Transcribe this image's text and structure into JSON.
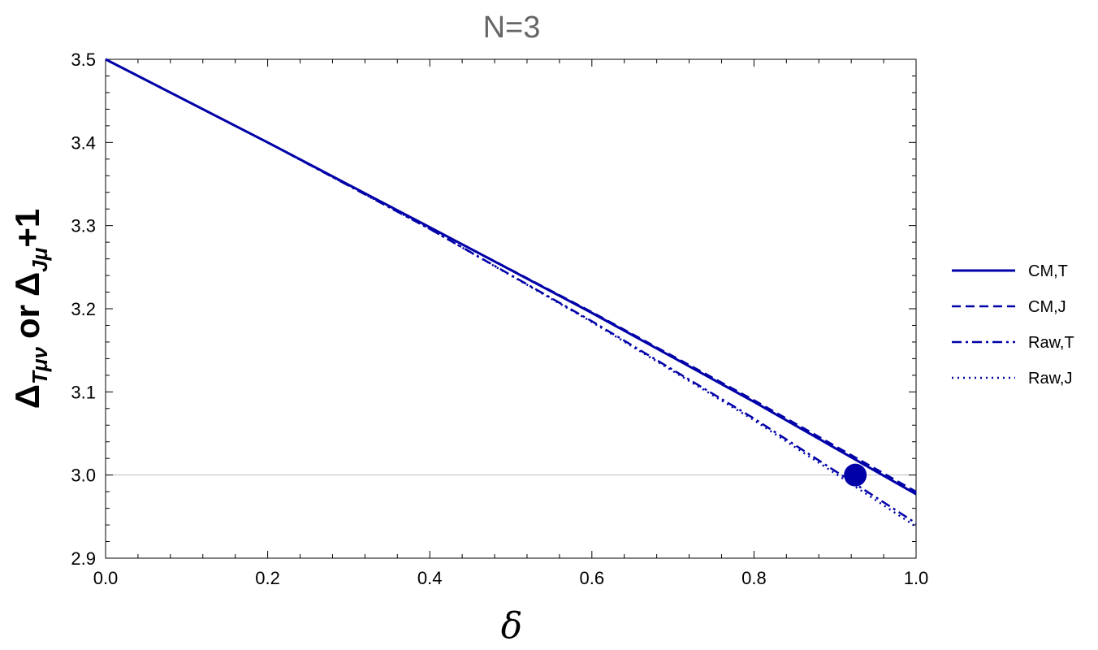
{
  "chart_data": {
    "type": "line",
    "title": "N=3",
    "xlabel": "δ",
    "ylabel": {
      "prefix_a": "Δ",
      "sub_a": "Tμν",
      "middle": "or",
      "prefix_b": "Δ",
      "sub_b": "Jμ",
      "suffix": "+1"
    },
    "xlim": [
      0.0,
      1.0
    ],
    "ylim": [
      2.9,
      3.5
    ],
    "xticks": [
      "0.0",
      "0.2",
      "0.4",
      "0.6",
      "0.8",
      "1.0"
    ],
    "yticks": [
      "2.9",
      "3.0",
      "3.1",
      "3.2",
      "3.3",
      "3.4",
      "3.5"
    ],
    "grid": false,
    "reference_line_y": 3.0,
    "legend_position": "right",
    "color": "#0000a8",
    "series": [
      {
        "name": "CM,T",
        "style": "solid",
        "x": [
          0.0,
          0.2,
          0.4,
          0.6,
          0.8,
          1.0
        ],
        "y": [
          3.5,
          3.4,
          3.298,
          3.195,
          3.088,
          2.977
        ]
      },
      {
        "name": "CM,J",
        "style": "dashed",
        "x": [
          0.0,
          0.2,
          0.4,
          0.6,
          0.8,
          1.0
        ],
        "y": [
          3.5,
          3.4,
          3.298,
          3.196,
          3.09,
          2.98
        ]
      },
      {
        "name": "Raw,T",
        "style": "dashdot",
        "x": [
          0.0,
          0.2,
          0.4,
          0.6,
          0.8,
          1.0
        ],
        "y": [
          3.5,
          3.4,
          3.296,
          3.185,
          3.068,
          2.942
        ]
      },
      {
        "name": "Raw,J",
        "style": "dotted",
        "x": [
          0.0,
          0.2,
          0.4,
          0.6,
          0.8,
          1.0
        ],
        "y": [
          3.5,
          3.4,
          3.296,
          3.184,
          3.066,
          2.938
        ]
      }
    ],
    "marker_point": {
      "x": 0.925,
      "y": 3.0
    }
  }
}
